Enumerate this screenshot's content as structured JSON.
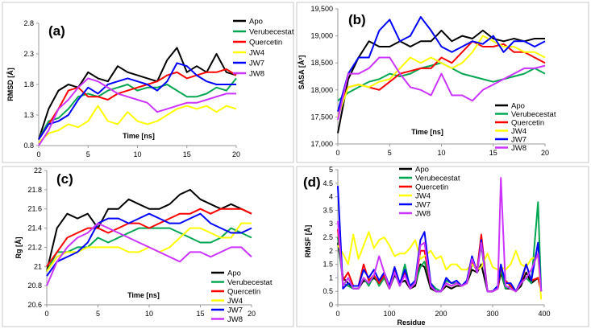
{
  "chart_data": [
    {
      "type": "line",
      "panel_label": "(a)",
      "xlabel": "Time [ns]",
      "ylabel": "RMSD [Å]",
      "xlim": [
        0,
        20
      ],
      "ylim": [
        0.8,
        2.8
      ],
      "xticks": [
        0,
        5,
        10,
        15,
        20
      ],
      "xtick_labels": [
        "0",
        "5",
        "10",
        "15",
        "20"
      ],
      "yticks": [
        0.8,
        1.3,
        1.8,
        2.3,
        2.8
      ],
      "ytick_labels": [
        "0.8",
        "1.3",
        "1.8",
        "2.3",
        "2.8"
      ],
      "legend_position": "top-right",
      "x": [
        0,
        1,
        2,
        3,
        4,
        5,
        6,
        7,
        8,
        9,
        10,
        11,
        12,
        13,
        14,
        15,
        16,
        17,
        18,
        19,
        20
      ],
      "series": [
        {
          "name": "Apo",
          "color": "#000000",
          "values": [
            0.9,
            1.4,
            1.7,
            1.8,
            1.75,
            2.0,
            1.9,
            1.85,
            2.1,
            2.0,
            1.95,
            1.9,
            1.85,
            2.2,
            2.4,
            2.0,
            2.1,
            2.0,
            2.3,
            2.0,
            1.95
          ]
        },
        {
          "name": "Verubecestat",
          "color": "#00A650",
          "values": [
            0.9,
            1.2,
            1.25,
            1.4,
            1.6,
            1.65,
            1.6,
            1.7,
            1.75,
            1.8,
            1.7,
            1.75,
            1.75,
            1.8,
            1.7,
            1.6,
            1.6,
            1.65,
            1.75,
            1.7,
            1.9
          ]
        },
        {
          "name": "Quercetin",
          "color": "#FF0000",
          "values": [
            0.9,
            1.15,
            1.4,
            1.7,
            1.75,
            1.6,
            1.6,
            1.55,
            1.65,
            1.7,
            1.75,
            1.8,
            1.85,
            1.95,
            2.0,
            1.9,
            1.95,
            2.0,
            2.0,
            2.05,
            1.95
          ]
        },
        {
          "name": "JW4",
          "color": "#FFFF00",
          "values": [
            0.85,
            1.0,
            1.05,
            1.15,
            1.1,
            1.2,
            1.45,
            1.2,
            1.15,
            1.35,
            1.2,
            1.15,
            1.2,
            1.3,
            1.4,
            1.45,
            1.4,
            1.45,
            1.35,
            1.45,
            1.4
          ]
        },
        {
          "name": "JW7",
          "color": "#0000FF",
          "values": [
            0.9,
            1.15,
            1.2,
            1.3,
            1.55,
            1.75,
            1.65,
            1.8,
            1.85,
            1.9,
            1.85,
            1.8,
            1.7,
            1.85,
            2.15,
            2.1,
            1.95,
            1.85,
            1.8,
            1.8,
            1.8
          ]
        },
        {
          "name": "JW8",
          "color": "#CC33FF",
          "values": [
            0.8,
            1.05,
            1.4,
            1.55,
            1.75,
            1.9,
            1.85,
            1.75,
            1.65,
            1.6,
            1.55,
            1.5,
            1.35,
            1.4,
            1.45,
            1.5,
            1.5,
            1.55,
            1.6,
            1.65,
            1.65
          ]
        }
      ]
    },
    {
      "type": "line",
      "panel_label": "(b)",
      "xlabel": "Time [ns]",
      "ylabel": "SASA [Å²]",
      "xlim": [
        0,
        20
      ],
      "ylim": [
        17000,
        19500
      ],
      "xticks": [
        0,
        5,
        10,
        15,
        20
      ],
      "xtick_labels": [
        "0",
        "5",
        "10",
        "15",
        "20"
      ],
      "yticks": [
        17000,
        17500,
        18000,
        18500,
        19000,
        19500
      ],
      "ytick_labels": [
        "17,000",
        "17,500",
        "18,000",
        "18,500",
        "19,000",
        "19,500"
      ],
      "legend_position": "bottom-right",
      "x": [
        0,
        1,
        2,
        3,
        4,
        5,
        6,
        7,
        8,
        9,
        10,
        11,
        12,
        13,
        14,
        15,
        16,
        17,
        18,
        19,
        20
      ],
      "series": [
        {
          "name": "Apo",
          "color": "#000000",
          "values": [
            17200,
            18200,
            18600,
            18900,
            18800,
            18800,
            18900,
            18800,
            18900,
            18900,
            19100,
            18900,
            19000,
            18950,
            19100,
            18950,
            18900,
            18950,
            18900,
            18950,
            18950
          ]
        },
        {
          "name": "Verubecestat",
          "color": "#00A650",
          "values": [
            17800,
            17950,
            18050,
            18150,
            18200,
            18300,
            18250,
            18300,
            18400,
            18450,
            18500,
            18400,
            18300,
            18250,
            18200,
            18150,
            18200,
            18250,
            18300,
            18400,
            18300
          ]
        },
        {
          "name": "Quercetin",
          "color": "#FF0000",
          "values": [
            17600,
            18050,
            18100,
            18050,
            18000,
            18150,
            18300,
            18350,
            18400,
            18400,
            18600,
            18500,
            18700,
            18900,
            18800,
            18800,
            18850,
            18700,
            18700,
            18600,
            18500
          ]
        },
        {
          "name": "JW4",
          "color": "#FFFF00",
          "values": [
            17500,
            18050,
            18100,
            18050,
            18150,
            18200,
            18400,
            18600,
            18500,
            18600,
            18500,
            18400,
            18500,
            18700,
            19000,
            18900,
            18800,
            18800,
            18700,
            18700,
            18600
          ]
        },
        {
          "name": "JW7",
          "color": "#0000FF",
          "values": [
            17600,
            18300,
            18600,
            18600,
            19100,
            19300,
            18900,
            19000,
            19350,
            19100,
            18800,
            18700,
            18800,
            18900,
            18850,
            19000,
            18700,
            18900,
            18900,
            18800,
            18900
          ]
        },
        {
          "name": "JW8",
          "color": "#CC33FF",
          "values": [
            17450,
            18300,
            18300,
            18400,
            18600,
            18600,
            18300,
            18050,
            18000,
            17900,
            18300,
            17900,
            17900,
            17800,
            18000,
            18100,
            18200,
            18300,
            18400,
            18400,
            18450
          ]
        }
      ]
    },
    {
      "type": "line",
      "panel_label": "(c)",
      "xlabel": "Time [ns]",
      "ylabel": "Rg [Å]",
      "xlim": [
        0,
        20
      ],
      "ylim": [
        20.6,
        22
      ],
      "xticks": [
        0,
        5,
        10,
        15,
        20
      ],
      "xtick_labels": [
        "0",
        "5",
        "10",
        "15",
        "20"
      ],
      "yticks": [
        20.6,
        20.8,
        21,
        21.2,
        21.4,
        21.6,
        21.8,
        22
      ],
      "ytick_labels": [
        "20.6",
        "20.8",
        "21",
        "21.2",
        "21.4",
        "21.6",
        "21.8",
        "22"
      ],
      "legend_position": "bottom-right",
      "x": [
        0,
        1,
        2,
        3,
        4,
        5,
        6,
        7,
        8,
        9,
        10,
        11,
        12,
        13,
        14,
        15,
        16,
        17,
        18,
        19,
        20
      ],
      "series": [
        {
          "name": "Apo",
          "color": "#000000",
          "values": [
            20.95,
            21.4,
            21.55,
            21.5,
            21.55,
            21.4,
            21.6,
            21.6,
            21.7,
            21.65,
            21.6,
            21.6,
            21.65,
            21.75,
            21.8,
            21.7,
            21.65,
            21.6,
            21.65,
            21.6,
            21.55
          ]
        },
        {
          "name": "Verubecestat",
          "color": "#00A650",
          "values": [
            20.95,
            21.15,
            21.15,
            21.2,
            21.2,
            21.3,
            21.25,
            21.3,
            21.35,
            21.4,
            21.4,
            21.4,
            21.4,
            21.35,
            21.3,
            21.25,
            21.25,
            21.3,
            21.4,
            21.35,
            21.3
          ]
        },
        {
          "name": "Quercetin",
          "color": "#FF0000",
          "values": [
            21.0,
            21.15,
            21.3,
            21.35,
            21.4,
            21.4,
            21.35,
            21.4,
            21.45,
            21.45,
            21.4,
            21.45,
            21.5,
            21.55,
            21.55,
            21.6,
            21.55,
            21.6,
            21.6,
            21.6,
            21.55
          ]
        },
        {
          "name": "JW4",
          "color": "#FFFF00",
          "values": [
            20.95,
            21.1,
            21.15,
            21.15,
            21.2,
            21.2,
            21.2,
            21.2,
            21.15,
            21.15,
            21.2,
            21.15,
            21.2,
            21.3,
            21.4,
            21.4,
            21.35,
            21.3,
            21.3,
            21.45,
            21.45
          ]
        },
        {
          "name": "JW7",
          "color": "#0000FF",
          "values": [
            20.9,
            21.05,
            21.1,
            21.15,
            21.25,
            21.45,
            21.5,
            21.5,
            21.45,
            21.5,
            21.55,
            21.5,
            21.45,
            21.45,
            21.5,
            21.55,
            21.45,
            21.4,
            21.35,
            21.35,
            21.4
          ]
        },
        {
          "name": "JW8",
          "color": "#CC33FF",
          "values": [
            20.8,
            21.05,
            21.2,
            21.3,
            21.35,
            21.45,
            21.4,
            21.35,
            21.3,
            21.25,
            21.2,
            21.15,
            21.1,
            21.05,
            21.15,
            21.15,
            21.1,
            21.15,
            21.2,
            21.2,
            21.1
          ]
        }
      ]
    },
    {
      "type": "line",
      "panel_label": "(d)",
      "xlabel": "Residue",
      "ylabel": "RMSF [Å]",
      "xlim": [
        0,
        400
      ],
      "ylim": [
        0,
        5
      ],
      "xticks": [
        0,
        100,
        200,
        300,
        400
      ],
      "xtick_labels": [
        "0",
        "100",
        "200",
        "300",
        "400"
      ],
      "yticks": [
        0,
        0.5,
        1,
        1.5,
        2,
        2.5,
        3,
        3.5,
        4,
        4.5,
        5
      ],
      "ytick_labels": [
        "0",
        "0.5",
        "1",
        "1.5",
        "2",
        "2.5",
        "3",
        "3.5",
        "4",
        "4.5",
        "5"
      ],
      "legend_position": "top-center",
      "x": [
        0,
        10,
        20,
        30,
        40,
        50,
        60,
        70,
        80,
        90,
        100,
        110,
        120,
        130,
        140,
        150,
        160,
        168,
        180,
        190,
        200,
        210,
        220,
        230,
        240,
        250,
        260,
        270,
        278,
        290,
        300,
        310,
        316,
        325,
        335,
        345,
        355,
        365,
        375,
        388,
        394
      ],
      "series": [
        {
          "name": "Apo",
          "color": "#000000",
          "values": [
            2.3,
            1.0,
            0.8,
            0.6,
            0.6,
            0.9,
            0.8,
            1.0,
            0.8,
            1.0,
            0.6,
            1.1,
            0.8,
            0.9,
            0.6,
            0.7,
            1.5,
            1.4,
            0.6,
            0.5,
            0.5,
            0.7,
            0.6,
            0.7,
            0.7,
            0.8,
            1.3,
            1.2,
            1.5,
            0.5,
            0.5,
            0.6,
            1.2,
            0.6,
            0.6,
            0.5,
            0.7,
            1.2,
            0.8,
            1.0,
            0.5
          ]
        },
        {
          "name": "Verubecestat",
          "color": "#00A650",
          "values": [
            2.5,
            0.8,
            0.7,
            0.6,
            0.6,
            1.0,
            0.7,
            1.1,
            0.7,
            1.0,
            0.6,
            1.2,
            0.7,
            1.5,
            0.6,
            0.8,
            1.4,
            1.6,
            0.8,
            0.6,
            0.5,
            0.9,
            0.8,
            0.8,
            0.7,
            0.8,
            1.5,
            1.3,
            2.2,
            0.5,
            0.5,
            0.7,
            1.3,
            0.6,
            0.7,
            0.5,
            0.8,
            1.0,
            0.8,
            3.8,
            0.5
          ]
        },
        {
          "name": "Quercetin",
          "color": "#FF0000",
          "values": [
            2.8,
            0.9,
            1.2,
            0.7,
            0.7,
            1.5,
            0.9,
            1.1,
            0.8,
            1.1,
            0.6,
            1.3,
            0.8,
            1.2,
            0.6,
            0.8,
            2.0,
            2.0,
            0.7,
            0.5,
            0.5,
            0.8,
            0.7,
            0.8,
            0.7,
            0.8,
            1.6,
            1.3,
            2.6,
            0.5,
            0.5,
            0.6,
            1.4,
            0.9,
            0.7,
            0.5,
            0.8,
            1.5,
            0.9,
            1.0,
            0.5
          ]
        },
        {
          "name": "JW4",
          "color": "#FFFF00",
          "values": [
            2.2,
            1.9,
            1.5,
            2.6,
            1.7,
            2.2,
            2.7,
            2.1,
            2.4,
            2.5,
            2.2,
            1.8,
            1.9,
            1.9,
            2.1,
            2.4,
            1.7,
            1.8,
            2.0,
            1.7,
            1.8,
            1.3,
            1.5,
            1.5,
            1.3,
            1.3,
            1.5,
            1.3,
            1.4,
            1.9,
            1.4,
            1.3,
            1.4,
            1.3,
            1.5,
            2.0,
            1.5,
            1.4,
            1.7,
            1.8,
            0.2
          ]
        },
        {
          "name": "JW7",
          "color": "#0000FF",
          "values": [
            4.4,
            0.6,
            0.8,
            0.7,
            0.7,
            1.3,
            1.0,
            1.3,
            0.9,
            1.2,
            0.7,
            1.4,
            0.8,
            1.3,
            0.7,
            0.9,
            2.4,
            2.7,
            0.8,
            0.5,
            0.5,
            1.0,
            0.8,
            0.9,
            0.7,
            0.9,
            1.8,
            1.2,
            2.4,
            0.5,
            0.5,
            0.7,
            1.5,
            0.8,
            0.8,
            0.5,
            0.9,
            1.5,
            0.9,
            2.3,
            0.5
          ]
        },
        {
          "name": "JW8",
          "color": "#CC33FF",
          "values": [
            3.1,
            0.7,
            1.0,
            0.6,
            0.6,
            1.0,
            0.8,
            1.1,
            1.8,
            1.2,
            0.6,
            1.2,
            0.7,
            1.1,
            0.6,
            0.8,
            2.2,
            2.3,
            0.7,
            0.5,
            0.5,
            0.8,
            0.7,
            0.8,
            0.7,
            0.8,
            1.7,
            1.2,
            2.3,
            0.5,
            0.5,
            0.6,
            4.7,
            0.7,
            0.6,
            0.5,
            0.8,
            1.0,
            1.3,
            1.9,
            0.5
          ]
        }
      ]
    }
  ]
}
